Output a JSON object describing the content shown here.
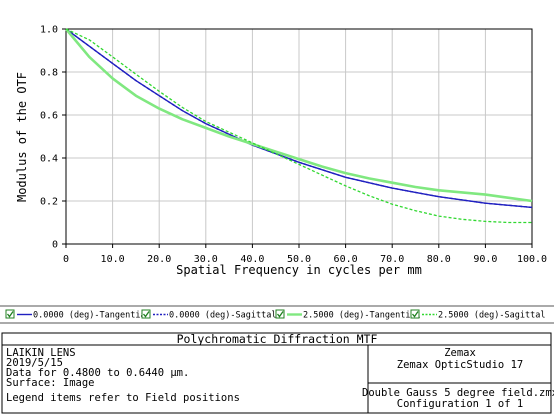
{
  "chart_data": {
    "type": "line",
    "xlabel": "Spatial Frequency in cycles per mm",
    "ylabel": "Modulus of the OTF",
    "xlim": [
      0,
      100
    ],
    "ylim": [
      0,
      1
    ],
    "x_ticks": [
      "0",
      "10.0",
      "20.0",
      "30.0",
      "40.0",
      "50.0",
      "60.0",
      "70.0",
      "80.0",
      "90.0",
      "100.0"
    ],
    "y_ticks": [
      "0",
      "0.2",
      "0.4",
      "0.6",
      "0.8",
      "1.0"
    ],
    "grid": true,
    "series": [
      {
        "name": "0.0000 (deg)-Tangential",
        "color": "#2020c0",
        "style": "solid",
        "x": [
          0,
          5,
          10,
          15,
          20,
          25,
          30,
          35,
          40,
          45,
          50,
          55,
          60,
          65,
          70,
          75,
          80,
          85,
          90,
          95,
          100
        ],
        "y": [
          1.0,
          0.92,
          0.84,
          0.76,
          0.69,
          0.62,
          0.56,
          0.51,
          0.46,
          0.42,
          0.38,
          0.345,
          0.31,
          0.285,
          0.26,
          0.24,
          0.22,
          0.205,
          0.19,
          0.18,
          0.17
        ]
      },
      {
        "name": "0.0000 (deg)-Sagittal",
        "color": "#2020c0",
        "style": "dashed",
        "x": [
          0,
          5,
          10,
          15,
          20,
          25,
          30,
          35,
          40,
          45,
          50,
          55,
          60,
          65,
          70,
          75,
          80,
          85,
          90,
          95,
          100
        ],
        "y": [
          1.0,
          0.92,
          0.84,
          0.76,
          0.69,
          0.62,
          0.56,
          0.51,
          0.46,
          0.42,
          0.38,
          0.345,
          0.31,
          0.285,
          0.26,
          0.24,
          0.22,
          0.205,
          0.19,
          0.18,
          0.17
        ]
      },
      {
        "name": "2.5000 (deg)-Tangential",
        "color": "#80e880",
        "style": "solid",
        "x": [
          0,
          5,
          10,
          15,
          20,
          25,
          30,
          35,
          40,
          45,
          50,
          55,
          60,
          65,
          70,
          75,
          80,
          85,
          90,
          95,
          100
        ],
        "y": [
          1.0,
          0.87,
          0.77,
          0.69,
          0.63,
          0.58,
          0.54,
          0.5,
          0.465,
          0.43,
          0.395,
          0.36,
          0.33,
          0.305,
          0.285,
          0.265,
          0.25,
          0.24,
          0.23,
          0.215,
          0.2
        ]
      },
      {
        "name": "2.5000 (deg)-Sagittal",
        "color": "#30d830",
        "style": "dashed",
        "x": [
          0,
          5,
          10,
          15,
          20,
          25,
          30,
          35,
          40,
          45,
          50,
          55,
          60,
          65,
          70,
          75,
          80,
          85,
          90,
          95,
          100
        ],
        "y": [
          1.0,
          0.95,
          0.87,
          0.79,
          0.71,
          0.635,
          0.57,
          0.52,
          0.47,
          0.42,
          0.37,
          0.32,
          0.27,
          0.225,
          0.185,
          0.155,
          0.13,
          0.115,
          0.105,
          0.1,
          0.1
        ]
      }
    ]
  },
  "footer": {
    "title": "Polychromatic Diffraction MTF",
    "info_lines": [
      "LAIKIN LENS",
      "2019/5/15",
      "Data for 0.4800 to 0.6440 µm.",
      "Surface: Image"
    ],
    "note": "Legend items refer to Field positions",
    "software_lines": [
      "Zemax",
      "Zemax OpticStudio 17"
    ],
    "file_lines": [
      "Double Gauss 5 degree field.zmx",
      "Configuration 1 of 1"
    ]
  }
}
